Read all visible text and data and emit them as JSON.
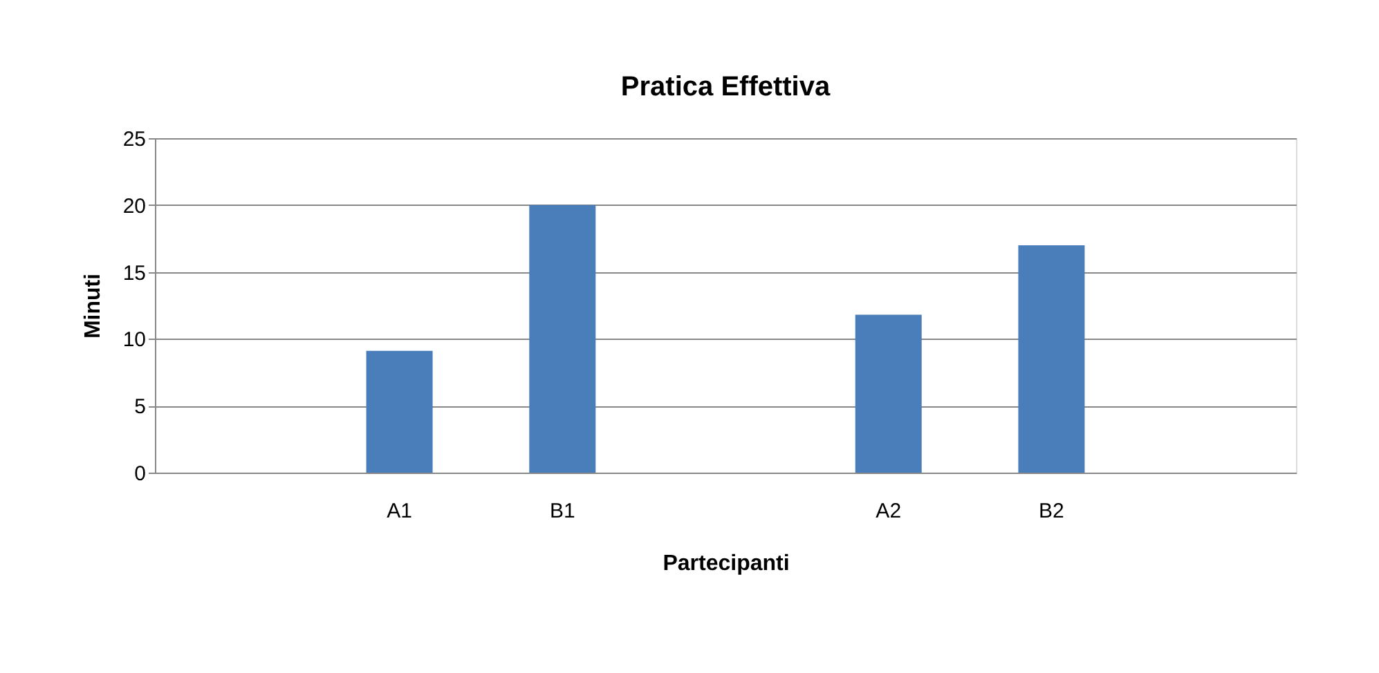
{
  "chart_data": {
    "type": "bar",
    "title": "Pratica Effettiva",
    "xlabel": "Partecipanti",
    "ylabel": "Minuti",
    "categories": [
      null,
      "A1",
      "B1",
      null,
      "A2",
      "B2",
      null
    ],
    "values": [
      null,
      9.1,
      20,
      null,
      11.8,
      17,
      null
    ],
    "color": "#4a7ebb",
    "ylim": [
      0,
      25
    ],
    "yticks": [
      0,
      5,
      10,
      15,
      20,
      25
    ],
    "grid": "y"
  }
}
